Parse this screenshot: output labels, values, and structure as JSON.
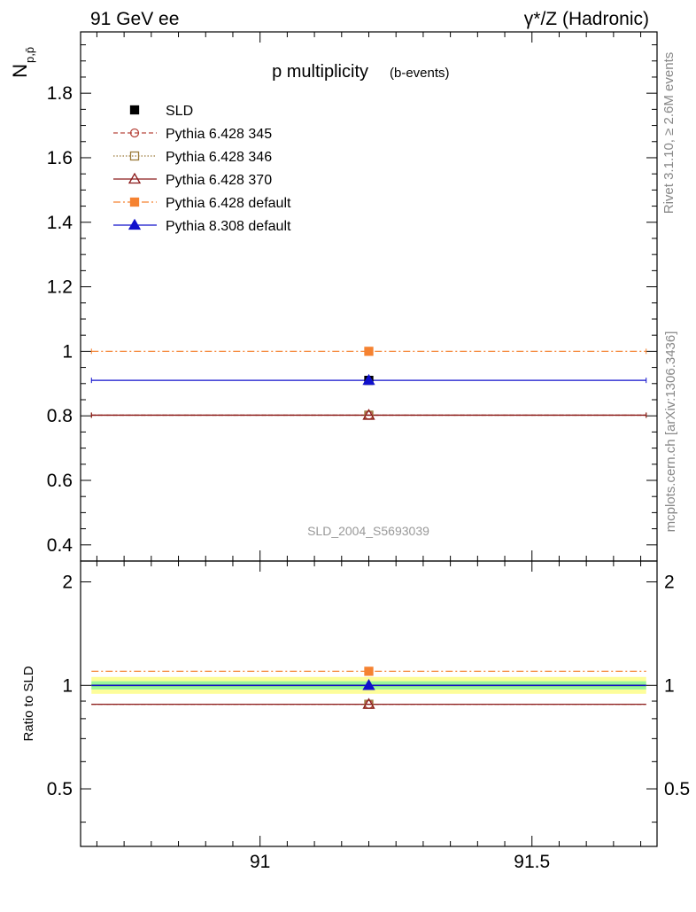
{
  "header": {
    "left": "91 GeV ee",
    "right": "γ*/Z (Hadronic)"
  },
  "side_text": {
    "rivet": "Rivet 3.1.10, ≥ 2.6M events",
    "mcplots": "mcplots.cern.ch [arXiv:1306.3436]"
  },
  "chart_data": [
    {
      "type": "line",
      "title": "p multiplicity",
      "subtitle": "(b-events)",
      "ylabel": "N",
      "ylabel_sub": "p,p̄",
      "watermark": "SLD_2004_S5693039",
      "xlim": [
        90.67,
        91.73
      ],
      "ylim": [
        0.35,
        1.99
      ],
      "yticks": [
        0.4,
        0.6,
        0.8,
        1,
        1.2,
        1.4,
        1.6,
        1.8
      ],
      "ytick_labels": [
        "0.4",
        "0.6",
        "0.8",
        "1",
        "1.2",
        "1.4",
        "1.6",
        "1.8"
      ],
      "x_point": 91.2,
      "x_range": [
        90.69,
        91.71
      ],
      "series": [
        {
          "name": "SLD",
          "value": 0.91,
          "color": "#000000",
          "marker": "filled-square",
          "line": "none"
        },
        {
          "name": "Pythia 6.428 345",
          "value": 0.802,
          "color": "#b8473f",
          "marker": "open-circle",
          "line": "dashed"
        },
        {
          "name": "Pythia 6.428 346",
          "value": 0.802,
          "color": "#9a7a3a",
          "marker": "open-square",
          "line": "dotted"
        },
        {
          "name": "Pythia 6.428 370",
          "value": 0.802,
          "color": "#8b1a1a",
          "marker": "open-triangle",
          "line": "solid"
        },
        {
          "name": "Pythia 6.428 default",
          "value": 1.0,
          "color": "#f58231",
          "marker": "filled-square",
          "line": "dashdot"
        },
        {
          "name": "Pythia 8.308 default",
          "value": 0.91,
          "color": "#1010cc",
          "marker": "filled-triangle",
          "line": "solid"
        }
      ]
    },
    {
      "type": "line",
      "ylabel": "Ratio to SLD",
      "xlim": [
        90.67,
        91.73
      ],
      "ylim": [
        0.34,
        2.3
      ],
      "log_scale": true,
      "yticks": [
        0.5,
        1,
        2
      ],
      "ytick_labels": [
        "0.5",
        "1",
        "2"
      ],
      "xticks": [
        91,
        91.5
      ],
      "xtick_labels": [
        "91",
        "91.5"
      ],
      "bands": [
        {
          "lo": 0.945,
          "hi": 1.058,
          "color": "#fdfd9a"
        },
        {
          "lo": 0.973,
          "hi": 1.028,
          "color": "#9af79a"
        }
      ],
      "ratios": [
        {
          "name": "SLD",
          "value": 1.0
        },
        {
          "name": "Pythia 6.428 345",
          "value": 0.881
        },
        {
          "name": "Pythia 6.428 346",
          "value": 0.881
        },
        {
          "name": "Pythia 6.428 370",
          "value": 0.881
        },
        {
          "name": "Pythia 6.428 default",
          "value": 1.099
        },
        {
          "name": "Pythia 8.308 default",
          "value": 1.0
        }
      ]
    }
  ]
}
